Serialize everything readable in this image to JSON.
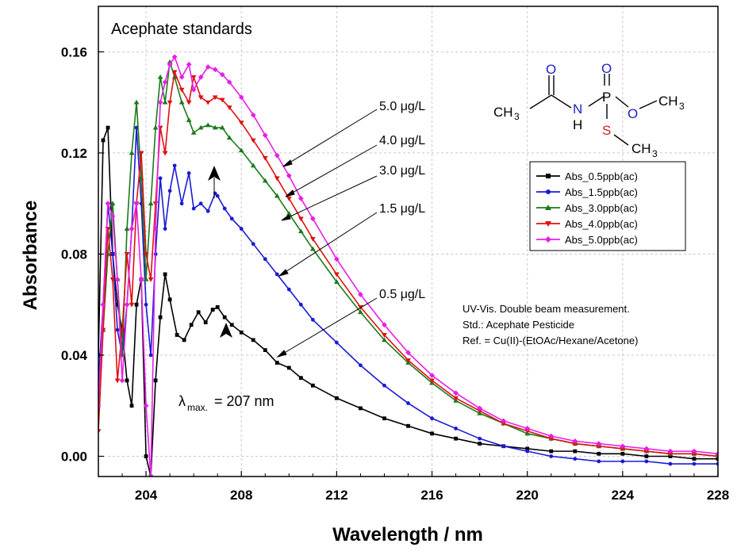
{
  "chart_data": {
    "type": "line",
    "title": "Acephate standards",
    "xlabel": "Wavelength / nm",
    "ylabel": "Absorbance",
    "xlim": [
      202,
      228
    ],
    "ylim": [
      -0.008,
      0.178
    ],
    "x_ticks": [
      "204",
      "208",
      "212",
      "216",
      "220",
      "224",
      "228"
    ],
    "y_ticks": [
      "0.00",
      "0.04",
      "0.08",
      "0.12",
      "0.16"
    ],
    "grid": true,
    "legend_position": "right",
    "series": [
      {
        "name": "Abs_0.5ppb(ac)",
        "color": "#000000",
        "marker": "square",
        "x": [
          202.0,
          202.2,
          202.4,
          202.6,
          202.8,
          203.0,
          203.2,
          203.4,
          203.6,
          203.8,
          204.0,
          204.2,
          204.4,
          204.6,
          204.8,
          205.0,
          205.3,
          205.6,
          205.9,
          206.2,
          206.5,
          206.8,
          207.0,
          207.3,
          207.6,
          208.0,
          208.5,
          209.0,
          209.5,
          210.0,
          210.5,
          211.0,
          212.0,
          213.0,
          214.0,
          215.0,
          216.0,
          217.0,
          218.0,
          219.0,
          220.0,
          221.0,
          222.0,
          223.0,
          224.0,
          225.0,
          226.0,
          227.0,
          228.0
        ],
        "values": [
          0.04,
          0.125,
          0.13,
          0.08,
          0.06,
          0.05,
          0.03,
          0.02,
          0.06,
          0.07,
          0.0,
          -0.008,
          0.03,
          0.055,
          0.072,
          0.062,
          0.048,
          0.046,
          0.052,
          0.057,
          0.053,
          0.058,
          0.059,
          0.055,
          0.052,
          0.049,
          0.046,
          0.042,
          0.037,
          0.035,
          0.031,
          0.028,
          0.023,
          0.019,
          0.015,
          0.012,
          0.009,
          0.007,
          0.005,
          0.004,
          0.003,
          0.002,
          0.002,
          0.001,
          0.001,
          0.0,
          0.0,
          -0.001,
          -0.001
        ]
      },
      {
        "name": "Abs_1.5ppb(ac)",
        "color": "#1a1ad6",
        "marker": "circle",
        "x": [
          202.0,
          202.2,
          202.4,
          202.6,
          202.8,
          203.0,
          203.2,
          203.4,
          203.6,
          203.8,
          204.0,
          204.2,
          204.4,
          204.6,
          204.8,
          205.0,
          205.2,
          205.5,
          205.8,
          206.0,
          206.3,
          206.6,
          206.9,
          207.0,
          207.3,
          207.6,
          208.0,
          208.5,
          209.0,
          209.5,
          210.0,
          210.5,
          211.0,
          212.0,
          213.0,
          214.0,
          215.0,
          216.0,
          217.0,
          218.0,
          219.0,
          220.0,
          221.0,
          222.0,
          223.0,
          224.0,
          225.0,
          226.0,
          227.0,
          228.0
        ],
        "values": [
          0.03,
          0.06,
          0.1,
          0.08,
          0.05,
          0.04,
          0.06,
          0.09,
          0.13,
          0.1,
          0.06,
          0.04,
          0.08,
          0.11,
          0.09,
          0.105,
          0.115,
          0.1,
          0.112,
          0.098,
          0.1,
          0.097,
          0.104,
          0.103,
          0.098,
          0.094,
          0.09,
          0.084,
          0.078,
          0.072,
          0.066,
          0.06,
          0.054,
          0.045,
          0.036,
          0.028,
          0.021,
          0.015,
          0.011,
          0.007,
          0.004,
          0.002,
          0.0,
          -0.001,
          -0.002,
          -0.002,
          -0.002,
          -0.003,
          -0.003,
          -0.003
        ]
      },
      {
        "name": "Abs_3.0ppb(ac)",
        "color": "#1a7a1a",
        "marker": "triangle-up",
        "x": [
          202.0,
          202.2,
          202.4,
          202.6,
          202.8,
          203.0,
          203.2,
          203.4,
          203.6,
          203.8,
          204.0,
          204.2,
          204.4,
          204.6,
          204.8,
          205.0,
          205.2,
          205.5,
          205.8,
          206.0,
          206.3,
          206.6,
          206.9,
          207.2,
          207.5,
          208.0,
          208.5,
          209.0,
          209.5,
          210.0,
          210.5,
          211.0,
          212.0,
          213.0,
          214.0,
          215.0,
          216.0,
          217.0,
          218.0,
          219.0,
          220.0,
          221.0,
          222.0,
          223.0,
          224.0,
          225.0,
          226.0,
          227.0,
          228.0
        ],
        "values": [
          0.025,
          0.05,
          0.08,
          0.1,
          0.07,
          0.04,
          0.09,
          0.12,
          0.14,
          0.11,
          0.07,
          0.1,
          0.13,
          0.15,
          0.14,
          0.156,
          0.15,
          0.14,
          0.133,
          0.128,
          0.13,
          0.131,
          0.13,
          0.13,
          0.126,
          0.121,
          0.115,
          0.109,
          0.103,
          0.096,
          0.089,
          0.082,
          0.069,
          0.057,
          0.046,
          0.037,
          0.029,
          0.022,
          0.017,
          0.013,
          0.009,
          0.007,
          0.005,
          0.004,
          0.003,
          0.002,
          0.001,
          0.001,
          0.0
        ]
      },
      {
        "name": "Abs_4.0ppb(ac)",
        "color": "#e01010",
        "marker": "triangle-down",
        "x": [
          202.0,
          202.2,
          202.4,
          202.6,
          202.8,
          203.0,
          203.2,
          203.4,
          203.6,
          203.8,
          204.0,
          204.2,
          204.4,
          204.6,
          204.8,
          205.0,
          205.2,
          205.5,
          205.8,
          206.0,
          206.3,
          206.6,
          206.9,
          207.2,
          207.5,
          208.0,
          208.5,
          209.0,
          209.5,
          210.0,
          210.5,
          211.0,
          212.0,
          213.0,
          214.0,
          215.0,
          216.0,
          217.0,
          218.0,
          219.0,
          220.0,
          221.0,
          222.0,
          223.0,
          224.0,
          225.0,
          226.0,
          227.0,
          228.0
        ],
        "values": [
          0.01,
          0.05,
          0.09,
          0.07,
          0.03,
          0.05,
          0.08,
          0.06,
          0.1,
          0.12,
          0.08,
          0.07,
          0.1,
          0.13,
          0.12,
          0.14,
          0.152,
          0.145,
          0.14,
          0.15,
          0.142,
          0.14,
          0.142,
          0.141,
          0.138,
          0.132,
          0.125,
          0.118,
          0.11,
          0.102,
          0.094,
          0.086,
          0.072,
          0.059,
          0.048,
          0.038,
          0.03,
          0.023,
          0.018,
          0.013,
          0.01,
          0.007,
          0.005,
          0.004,
          0.003,
          0.002,
          0.001,
          0.001,
          0.0
        ]
      },
      {
        "name": "Abs_5.0ppb(ac)",
        "color": "#e81ee8",
        "marker": "diamond",
        "x": [
          202.0,
          202.2,
          202.4,
          202.6,
          202.8,
          203.0,
          203.2,
          203.4,
          203.6,
          203.8,
          204.0,
          204.2,
          204.4,
          204.6,
          204.8,
          205.0,
          205.2,
          205.5,
          205.8,
          206.0,
          206.3,
          206.6,
          206.9,
          207.2,
          207.5,
          208.0,
          208.5,
          209.0,
          209.5,
          210.0,
          210.5,
          211.0,
          212.0,
          213.0,
          214.0,
          215.0,
          216.0,
          217.0,
          218.0,
          219.0,
          220.0,
          221.0,
          222.0,
          223.0,
          224.0,
          225.0,
          226.0,
          227.0,
          228.0
        ],
        "values": [
          0.02,
          0.06,
          0.1,
          0.095,
          0.07,
          0.03,
          0.06,
          0.09,
          0.1,
          0.07,
          0.02,
          -0.008,
          0.09,
          0.14,
          0.148,
          0.155,
          0.158,
          0.15,
          0.155,
          0.145,
          0.15,
          0.154,
          0.153,
          0.151,
          0.148,
          0.142,
          0.135,
          0.127,
          0.119,
          0.111,
          0.102,
          0.094,
          0.078,
          0.064,
          0.052,
          0.041,
          0.032,
          0.025,
          0.019,
          0.014,
          0.011,
          0.008,
          0.006,
          0.005,
          0.004,
          0.003,
          0.002,
          0.002,
          0.001
        ]
      }
    ],
    "annotations": {
      "concentration_labels": [
        "5.0 μg/L",
        "4.0 μg/L",
        "3.0 μg/L",
        "1.5 μg/L",
        "0.5 μg/L"
      ],
      "lambda_label": "λ",
      "lambda_subscript": "max.",
      "lambda_value": "= 207 nm",
      "notes": [
        "UV-Vis. Double beam measurement.",
        "Std.: Acephate Pesticide",
        "Ref. = Cu(II)-(EtOAc/Hexane/Acetone)"
      ]
    },
    "molecule": {
      "atoms": {
        "o1": "O",
        "o2": "O",
        "o3": "O",
        "ch3_left": "CH",
        "ch3_right": "CH",
        "ch3_bottom": "CH",
        "sub3": "3",
        "n": "N",
        "h": "H",
        "p": "P",
        "s": "S"
      },
      "colors": {
        "oxygen": "#2020c8",
        "nitrogen": "#2020c8",
        "sulfur": "#d02020",
        "bond": "#000000"
      }
    }
  }
}
